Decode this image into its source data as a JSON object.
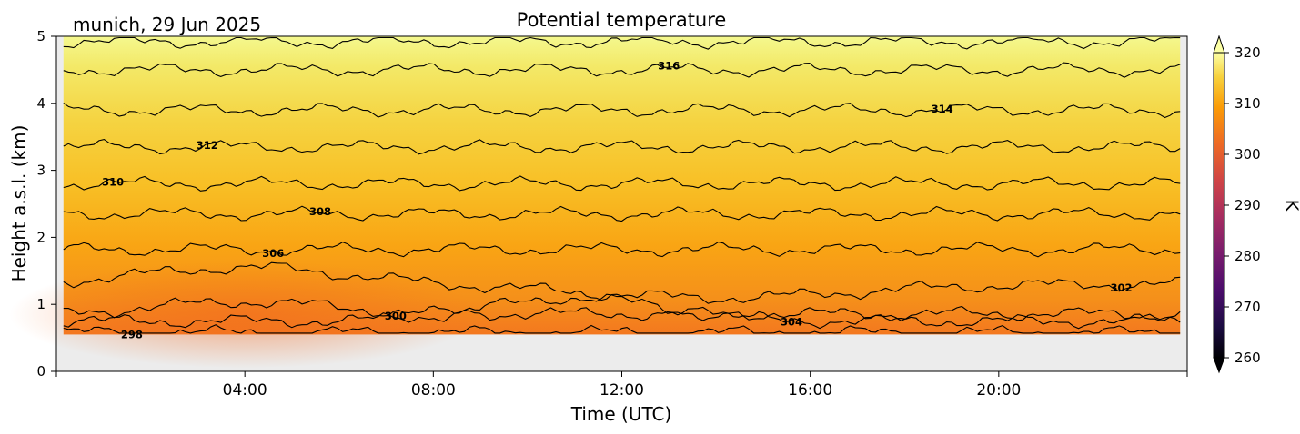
{
  "chart_data": {
    "type": "heatmap",
    "title": "Potential temperature",
    "location_label": "munich, 29 Jun 2025",
    "xlabel": "Time (UTC)",
    "ylabel": "Height a.s.l. (km)",
    "xlim": [
      0,
      24
    ],
    "ylim": [
      0,
      5
    ],
    "x_ticks": [
      {
        "value": 4,
        "label": "04:00"
      },
      {
        "value": 8,
        "label": "08:00"
      },
      {
        "value": 12,
        "label": "12:00"
      },
      {
        "value": 16,
        "label": "16:00"
      },
      {
        "value": 20,
        "label": "20:00"
      }
    ],
    "y_ticks": [
      {
        "value": 0,
        "label": "0"
      },
      {
        "value": 1,
        "label": "1"
      },
      {
        "value": 2,
        "label": "2"
      },
      {
        "value": 3,
        "label": "3"
      },
      {
        "value": 4,
        "label": "4"
      },
      {
        "value": 5,
        "label": "5"
      }
    ],
    "data_extent": {
      "x": [
        0.15,
        23.85
      ],
      "y": [
        0.55,
        5
      ]
    },
    "no_data_color": "#ececec",
    "colorbar": {
      "label": "K",
      "range": [
        260,
        320
      ],
      "ticks": [
        {
          "value": 260,
          "label": "260"
        },
        {
          "value": 270,
          "label": "270"
        },
        {
          "value": 280,
          "label": "280"
        },
        {
          "value": 290,
          "label": "290"
        },
        {
          "value": 300,
          "label": "300"
        },
        {
          "value": 310,
          "label": "310"
        },
        {
          "value": 320,
          "label": "320"
        }
      ],
      "extend": "both"
    },
    "contours": [
      {
        "level": 298,
        "label": "298",
        "base_height": 0.58,
        "label_x": 1.6
      },
      {
        "level": 300,
        "label": "300",
        "base_height": 0.86,
        "label_x": 7.2
      },
      {
        "level": 302,
        "label": "302",
        "base_height": 1.3,
        "label_x": 22.6
      },
      {
        "level": 304,
        "label": "304",
        "base_height": 0.75,
        "label_x": 15.6
      },
      {
        "level": 306,
        "label": "306",
        "base_height": 1.82,
        "label_x": 4.6
      },
      {
        "level": 308,
        "label": "308",
        "base_height": 2.35,
        "label_x": 5.6
      },
      {
        "level": 310,
        "label": "310",
        "base_height": 2.8,
        "label_x": 1.2
      },
      {
        "level": 312,
        "label": "312",
        "base_height": 3.35,
        "label_x": 3.2
      },
      {
        "level": 314,
        "label": "314",
        "base_height": 3.9,
        "label_x": 18.8
      },
      {
        "level": 316,
        "label": "316",
        "base_height": 4.5,
        "label_x": 13.0
      },
      {
        "level": 318,
        "label": "",
        "base_height": 4.92,
        "label_x": 0
      }
    ]
  }
}
